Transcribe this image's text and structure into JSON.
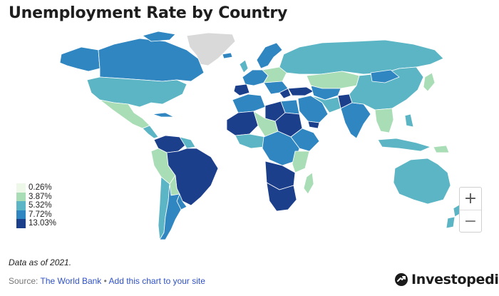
{
  "title": "Unemployment Rate by Country",
  "legend": {
    "items": [
      {
        "label": "0.26%",
        "color": "#edf8e9"
      },
      {
        "label": "3.87%",
        "color": "#a8ddb5"
      },
      {
        "label": "5.32%",
        "color": "#5bb5c4"
      },
      {
        "label": "7.72%",
        "color": "#2f86c1"
      },
      {
        "label": "13.03%",
        "color": "#1c3f8c"
      }
    ]
  },
  "no_data_color": "#d9d9d9",
  "zoom": {
    "in_label": "+",
    "out_label": "−"
  },
  "note": "Data as of 2021.",
  "source": {
    "prefix": "Source: ",
    "link_label": "The World Bank",
    "separator": " • ",
    "add_label": "Add this chart to your site"
  },
  "logo": {
    "text": "Investopedia",
    "icon": "investopedia-logo-icon"
  }
}
